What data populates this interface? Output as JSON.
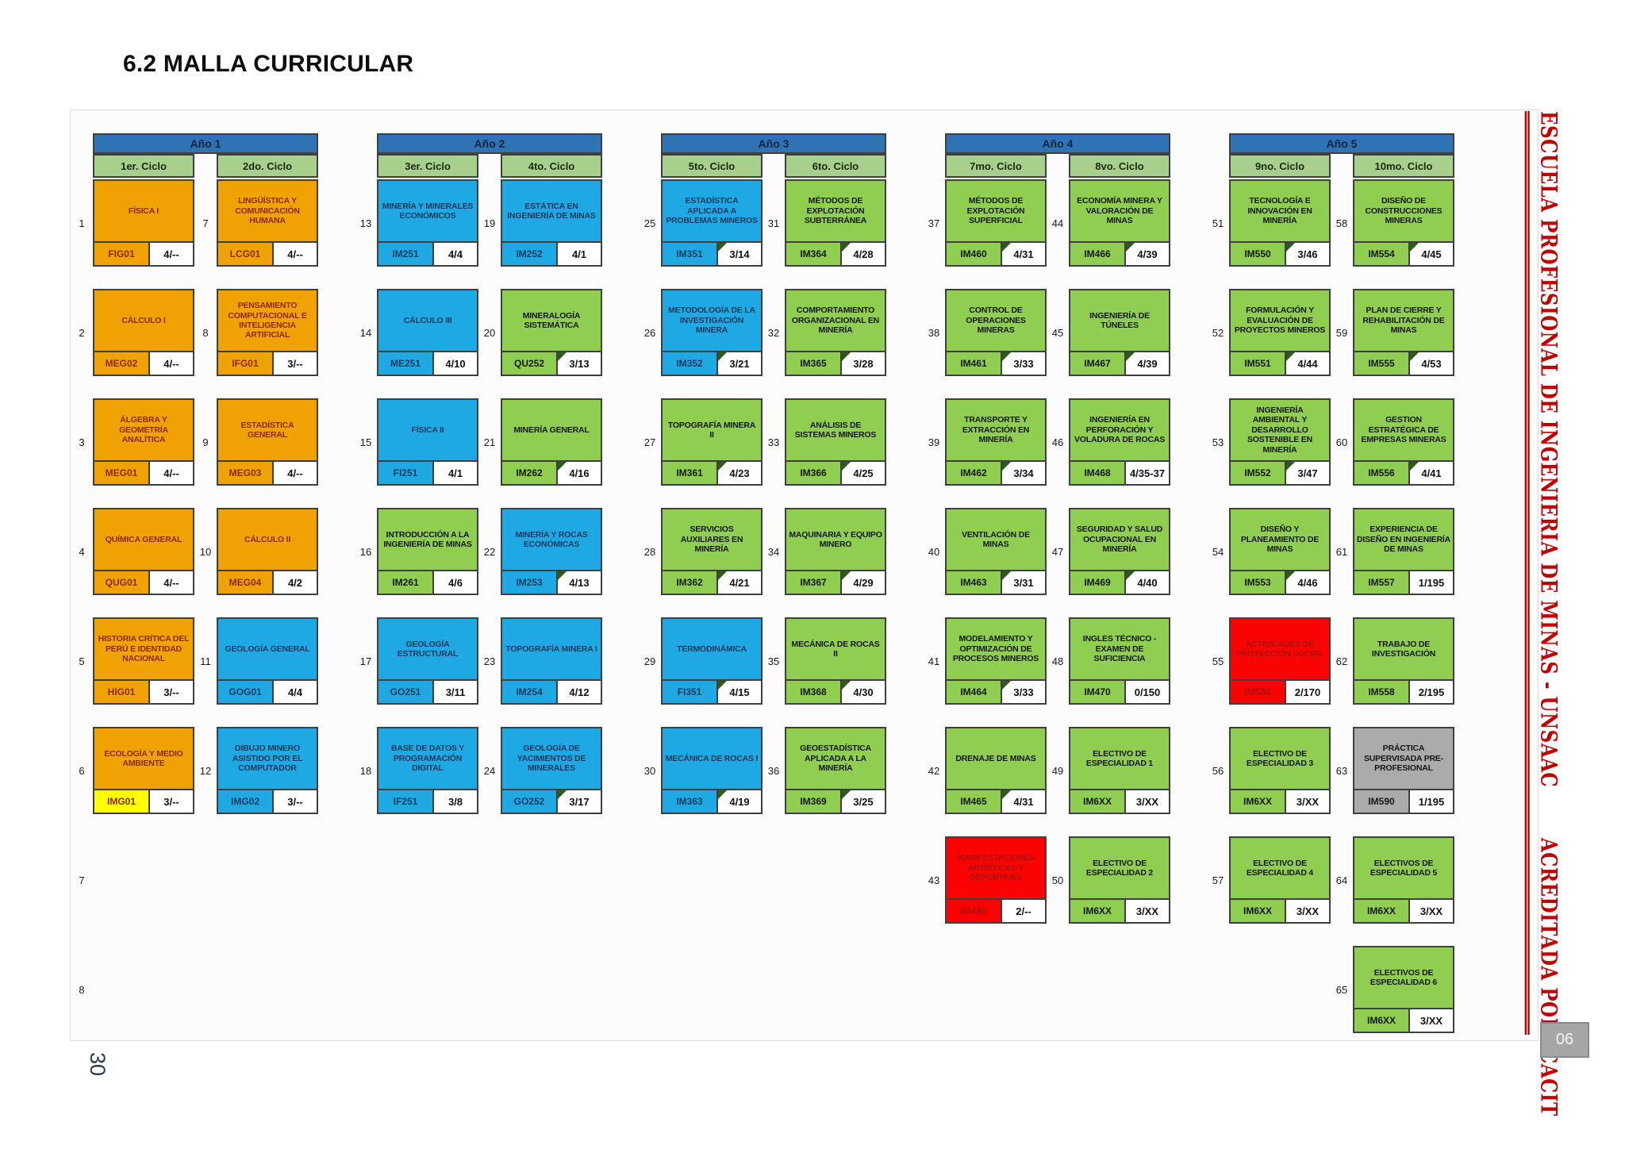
{
  "page": {
    "title": "6.2 MALLA CURRICULAR",
    "page_number": "30",
    "badge": "06"
  },
  "side_banner": {
    "school": "ESCUELA PROFESIONAL DE INGENIERIA DE MINAS - UNSAAC",
    "accreditation": "ACREDITADA POR ICACIT",
    "color": "#C00000"
  },
  "styles": {
    "orange": {
      "bg": "#F0A202",
      "text": "#8A2A00"
    },
    "blue": {
      "bg": "#1FA9E4",
      "text": "#16395C"
    },
    "green": {
      "bg": "#90CE51",
      "text": "#161616"
    },
    "red": {
      "bg": "#FB0303",
      "text": "#A91111"
    },
    "gray": {
      "bg": "#ABABAB",
      "text": "#161616"
    },
    "year_header": {
      "bg": "#2E74B5",
      "text": "#13233B"
    },
    "cycle_header": {
      "bg": "#A8D08D",
      "text": "#1A2B10"
    },
    "credits_bg": "#FFFFFF",
    "notch": "#2E5A1C",
    "border": "#3F3F3F",
    "highlight_code_bg": "#FFFF00"
  },
  "years": [
    {
      "label": "Año 1",
      "cycles": [
        {
          "label": "1er. Ciclo",
          "extra_nums": [
            "7",
            "8"
          ],
          "courses": [
            {
              "num": "1",
              "name": "FÍSICA I",
              "code": "FIG01",
              "credits": "4/--",
              "style": "orange",
              "notch": false
            },
            {
              "num": "2",
              "name": "CÁLCULO I",
              "code": "MEG02",
              "credits": "4/--",
              "style": "orange",
              "notch": false
            },
            {
              "num": "3",
              "name": "ÁLGEBRA Y GEOMETRÍA ANALÍTICA",
              "code": "MEG01",
              "credits": "4/--",
              "style": "orange",
              "notch": false
            },
            {
              "num": "4",
              "name": "QUÍMICA GENERAL",
              "code": "QUG01",
              "credits": "4/--",
              "style": "orange",
              "notch": false
            },
            {
              "num": "5",
              "name": "HISTORIA CRÍTICA DEL PERÚ E IDENTIDAD NACIONAL",
              "code": "HIG01",
              "credits": "3/--",
              "style": "orange",
              "notch": false
            },
            {
              "num": "6",
              "name": "ECOLOGÍA Y MEDIO AMBIENTE",
              "code": "IMG01",
              "credits": "3/--",
              "style": "orange",
              "notch": false,
              "code_highlight": true
            }
          ]
        },
        {
          "label": "2do. Ciclo",
          "courses": [
            {
              "num": "7",
              "name": "LINGÜÍSTICA Y COMUNICACIÓN HUMANA",
              "code": "LCG01",
              "credits": "4/--",
              "style": "orange",
              "notch": false
            },
            {
              "num": "8",
              "name": "PENSAMIENTO COMPUTACIONAL E INTELIGENCIA ARTIFICIAL",
              "code": "IFG01",
              "credits": "3/--",
              "style": "orange",
              "notch": false
            },
            {
              "num": "9",
              "name": "ESTADÍSTICA GENERAL",
              "code": "MEG03",
              "credits": "4/--",
              "style": "orange",
              "notch": false
            },
            {
              "num": "10",
              "name": "CÁLCULO II",
              "code": "MEG04",
              "credits": "4/2",
              "style": "orange",
              "notch": false
            },
            {
              "num": "11",
              "name": "GEOLOGÍA GENERAL",
              "code": "GOG01",
              "credits": "4/4",
              "style": "blue",
              "notch": false
            },
            {
              "num": "12",
              "name": "DIBUJO MINERO ASISTIDO POR EL COMPUTADOR",
              "code": "IMG02",
              "credits": "3/--",
              "style": "blue",
              "notch": false
            }
          ]
        }
      ]
    },
    {
      "label": "Año 2",
      "cycles": [
        {
          "label": "3er. Ciclo",
          "courses": [
            {
              "num": "13",
              "name": "MINERÍA Y MINERALES ECONÓMICOS",
              "code": "IM251",
              "credits": "4/4",
              "style": "blue",
              "notch": false
            },
            {
              "num": "14",
              "name": "CÁLCULO III",
              "code": "ME251",
              "credits": "4/10",
              "style": "blue",
              "notch": false
            },
            {
              "num": "15",
              "name": "FÍSICA II",
              "code": "FI251",
              "credits": "4/1",
              "style": "blue",
              "notch": false
            },
            {
              "num": "16",
              "name": "INTRODUCCIÓN A LA INGENIERÍA DE MINAS",
              "code": "IM261",
              "credits": "4/6",
              "style": "green",
              "notch": false
            },
            {
              "num": "17",
              "name": "GEOLOGÍA ESTRUCTURAL",
              "code": "GO251",
              "credits": "3/11",
              "style": "blue",
              "notch": false
            },
            {
              "num": "18",
              "name": "BASE DE DATOS Y PROGRAMACIÓN DIGITAL",
              "code": "IF251",
              "credits": "3/8",
              "style": "blue",
              "notch": false
            }
          ]
        },
        {
          "label": "4to. Ciclo",
          "courses": [
            {
              "num": "19",
              "name": "ESTÁTICA EN INGENIERÍA DE MINAS",
              "code": "IM252",
              "credits": "4/1",
              "style": "blue",
              "notch": false
            },
            {
              "num": "20",
              "name": "MINERALOGÍA SISTEMÁTICA",
              "code": "QU252",
              "credits": "3/13",
              "style": "green",
              "notch": true
            },
            {
              "num": "21",
              "name": "MINERÍA GENERAL",
              "code": "IM262",
              "credits": "4/16",
              "style": "green",
              "notch": true
            },
            {
              "num": "22",
              "name": "MINERÍA Y ROCAS ECONÓMICAS",
              "code": "IM253",
              "credits": "4/13",
              "style": "blue",
              "notch": true
            },
            {
              "num": "23",
              "name": "TOPOGRAFÍA MINERA I",
              "code": "IM254",
              "credits": "4/12",
              "style": "blue",
              "notch": false
            },
            {
              "num": "24",
              "name": "GEOLOGÍA DE YACIMIENTOS DE MINERALES",
              "code": "GO252",
              "credits": "3/17",
              "style": "blue",
              "notch": true
            }
          ]
        }
      ]
    },
    {
      "label": "Año 3",
      "cycles": [
        {
          "label": "5to. Ciclo",
          "courses": [
            {
              "num": "25",
              "name": "ESTADÍSTICA APLICADA A PROBLEMAS MINEROS",
              "code": "IM351",
              "credits": "3/14",
              "style": "blue",
              "notch": true
            },
            {
              "num": "26",
              "name": "METODOLOGÍA DE LA INVESTIGACIÓN MINERA",
              "code": "IM352",
              "credits": "3/21",
              "style": "blue",
              "notch": true
            },
            {
              "num": "27",
              "name": "TOPOGRAFÍA MINERA II",
              "code": "IM361",
              "credits": "4/23",
              "style": "green",
              "notch": true
            },
            {
              "num": "28",
              "name": "SERVICIOS AUXILIARES EN MINERÍA",
              "code": "IM362",
              "credits": "4/21",
              "style": "green",
              "notch": true
            },
            {
              "num": "29",
              "name": "TERMODINÁMICA",
              "code": "FI351",
              "credits": "4/15",
              "style": "blue",
              "notch": true
            },
            {
              "num": "30",
              "name": "MECÁNICA DE ROCAS I",
              "code": "IM363",
              "credits": "4/19",
              "style": "blue",
              "notch": true
            }
          ]
        },
        {
          "label": "6to. Ciclo",
          "courses": [
            {
              "num": "31",
              "name": "MÉTODOS DE EXPLOTACIÓN SUBTERRÁNEA",
              "code": "IM364",
              "credits": "4/28",
              "style": "green",
              "notch": true
            },
            {
              "num": "32",
              "name": "COMPORTAMIENTO ORGANIZACIONAL EN MINERÍA",
              "code": "IM365",
              "credits": "3/28",
              "style": "green",
              "notch": true
            },
            {
              "num": "33",
              "name": "ANÁLISIS DE SISTEMAS MINEROS",
              "code": "IM366",
              "credits": "4/25",
              "style": "green",
              "notch": true
            },
            {
              "num": "34",
              "name": "MAQUINARIA Y EQUIPO MINERO",
              "code": "IM367",
              "credits": "4/29",
              "style": "green",
              "notch": true
            },
            {
              "num": "35",
              "name": "MECÁNICA DE ROCAS II",
              "code": "IM368",
              "credits": "4/30",
              "style": "green",
              "notch": true
            },
            {
              "num": "36",
              "name": "GEOESTADÍSTICA APLICADA A LA MINERÍA",
              "code": "IM369",
              "credits": "3/25",
              "style": "green",
              "notch": true
            }
          ]
        }
      ]
    },
    {
      "label": "Año 4",
      "cycles": [
        {
          "label": "7mo. Ciclo",
          "courses": [
            {
              "num": "37",
              "name": "MÉTODOS DE EXPLOTACIÓN SUPERFICIAL",
              "code": "IM460",
              "credits": "4/31",
              "style": "green",
              "notch": true
            },
            {
              "num": "38",
              "name": "CONTROL DE OPERACIONES MINERAS",
              "code": "IM461",
              "credits": "3/33",
              "style": "green",
              "notch": true
            },
            {
              "num": "39",
              "name": "TRANSPORTE Y EXTRACCIÓN EN MINERÍA",
              "code": "IM462",
              "credits": "3/34",
              "style": "green",
              "notch": true
            },
            {
              "num": "40",
              "name": "VENTILACIÓN DE MINAS",
              "code": "IM463",
              "credits": "3/31",
              "style": "green",
              "notch": true
            },
            {
              "num": "41",
              "name": "MODELAMIENTO Y OPTIMIZACIÓN DE PROCESOS MINEROS",
              "code": "IM464",
              "credits": "3/33",
              "style": "green",
              "notch": true
            },
            {
              "num": "42",
              "name": "DRENAJE DE MINAS",
              "code": "IM465",
              "credits": "4/31",
              "style": "green",
              "notch": true
            },
            {
              "num": "43",
              "name": "MANIFESTACIONES ARTÍSTICAS Y DEPORTIVAS",
              "code": "IM480",
              "credits": "2/--",
              "style": "red",
              "notch": false
            }
          ]
        },
        {
          "label": "8vo. Ciclo",
          "courses": [
            {
              "num": "44",
              "name": "ECONOMÍA MINERA Y VALORACIÓN DE MINAS",
              "code": "IM466",
              "credits": "4/39",
              "style": "green",
              "notch": true
            },
            {
              "num": "45",
              "name": "INGENIERÍA DE TÚNELES",
              "code": "IM467",
              "credits": "4/39",
              "style": "green",
              "notch": true
            },
            {
              "num": "46",
              "name": "INGENIERÍA EN PERFORACIÓN Y VOLADURA DE ROCAS",
              "code": "IM468",
              "credits": "4/35-37",
              "style": "green",
              "notch": false
            },
            {
              "num": "47",
              "name": "SEGURIDAD Y SALUD OCUPACIONAL EN MINERÍA",
              "code": "IM469",
              "credits": "4/40",
              "style": "green",
              "notch": true
            },
            {
              "num": "48",
              "name": "INGLES TÉCNICO - EXAMEN DE SUFICIENCIA",
              "code": "IM470",
              "credits": "0/150",
              "style": "green",
              "notch": false
            },
            {
              "num": "49",
              "name": "ELECTIVO DE ESPECIALIDAD 1",
              "code": "IM6XX",
              "credits": "3/XX",
              "style": "green",
              "notch": false
            },
            {
              "num": "50",
              "name": "ELECTIVO DE ESPECIALIDAD 2",
              "code": "IM6XX",
              "credits": "3/XX",
              "style": "green",
              "notch": false
            }
          ]
        }
      ]
    },
    {
      "label": "Año 5",
      "cycles": [
        {
          "label": "9no. Ciclo",
          "courses": [
            {
              "num": "51",
              "name": "TECNOLOGÍA E INNOVACIÓN EN MINERÍA",
              "code": "IM550",
              "credits": "3/46",
              "style": "green",
              "notch": true
            },
            {
              "num": "52",
              "name": "FORMULACIÓN Y EVALUACIÓN DE PROYECTOS MINEROS",
              "code": "IM551",
              "credits": "4/44",
              "style": "green",
              "notch": true
            },
            {
              "num": "53",
              "name": "INGENIERÍA AMBIENTAL Y DESARROLLO SOSTENIBLE EN MINERÍA",
              "code": "IM552",
              "credits": "3/47",
              "style": "green",
              "notch": true
            },
            {
              "num": "54",
              "name": "DISEÑO Y PLANEAMIENTO DE MINAS",
              "code": "IM553",
              "credits": "4/46",
              "style": "green",
              "notch": true
            },
            {
              "num": "55",
              "name": "ACTIVIDADES DE PROYECCIÓN SOCIAL",
              "code": "IM580",
              "credits": "2/170",
              "style": "red",
              "notch": false
            },
            {
              "num": "56",
              "name": "ELECTIVO DE ESPECIALIDAD 3",
              "code": "IM6XX",
              "credits": "3/XX",
              "style": "green",
              "notch": false
            },
            {
              "num": "57",
              "name": "ELECTIVO DE ESPECIALIDAD 4",
              "code": "IM6XX",
              "credits": "3/XX",
              "style": "green",
              "notch": false
            }
          ]
        },
        {
          "label": "10mo. Ciclo",
          "courses": [
            {
              "num": "58",
              "name": "DISEÑO DE CONSTRUCCIONES MINERAS",
              "code": "IM554",
              "credits": "4/45",
              "style": "green",
              "notch": true
            },
            {
              "num": "59",
              "name": "PLAN DE CIERRE Y REHABILITACIÓN DE MINAS",
              "code": "IM555",
              "credits": "4/53",
              "style": "green",
              "notch": true
            },
            {
              "num": "60",
              "name": "GESTION ESTRATÉGICA DE EMPRESAS MINERAS",
              "code": "IM556",
              "credits": "4/41",
              "style": "green",
              "notch": true
            },
            {
              "num": "61",
              "name": "EXPERIENCIA DE DISEÑO EN INGENIERÍA DE MINAS",
              "code": "IM557",
              "credits": "1/195",
              "style": "green",
              "notch": false
            },
            {
              "num": "62",
              "name": "TRABAJO DE INVESTIGACIÓN",
              "code": "IM558",
              "credits": "2/195",
              "style": "green",
              "notch": false
            },
            {
              "num": "63",
              "name": "PRÁCTICA SUPERVISADA PRE-PROFESIONAL",
              "code": "IM590",
              "credits": "1/195",
              "style": "gray",
              "notch": false
            },
            {
              "num": "64",
              "name": "ELECTIVOS DE ESPECIALIDAD 5",
              "code": "IM6XX",
              "credits": "3/XX",
              "style": "green",
              "notch": false
            },
            {
              "num": "65",
              "name": "ELECTIVOS DE ESPECIALIDAD 6",
              "code": "IM6XX",
              "credits": "3/XX",
              "style": "green",
              "notch": false
            }
          ]
        }
      ]
    }
  ]
}
